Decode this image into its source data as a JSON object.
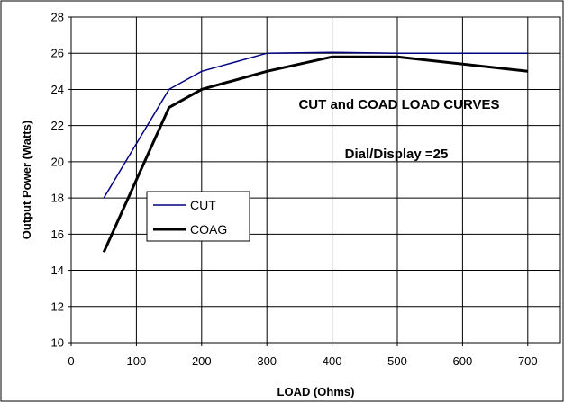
{
  "chart_data": {
    "type": "line",
    "title": "",
    "xlabel": "LOAD (Ohms)",
    "ylabel": "Output Power (Watts)",
    "xlim": [
      0,
      750
    ],
    "ylim": [
      10,
      28
    ],
    "xticks": [
      0,
      100,
      200,
      300,
      400,
      500,
      600,
      700
    ],
    "yticks": [
      10,
      12,
      14,
      16,
      18,
      20,
      22,
      24,
      26,
      28
    ],
    "grid": true,
    "legend_position": "left",
    "annotations": [
      "CUT and COAD LOAD CURVES",
      "Dial/Display =25"
    ],
    "series": [
      {
        "name": "CUT",
        "color": "#000080",
        "x": [
          50,
          150,
          200,
          300,
          400,
          500,
          700
        ],
        "y": [
          18,
          24,
          25,
          26,
          26.05,
          26,
          26
        ]
      },
      {
        "name": "COAG",
        "color": "#000000",
        "x": [
          50,
          150,
          200,
          300,
          400,
          500,
          700
        ],
        "y": [
          15,
          23,
          24,
          25,
          25.8,
          25.8,
          25
        ]
      }
    ]
  }
}
